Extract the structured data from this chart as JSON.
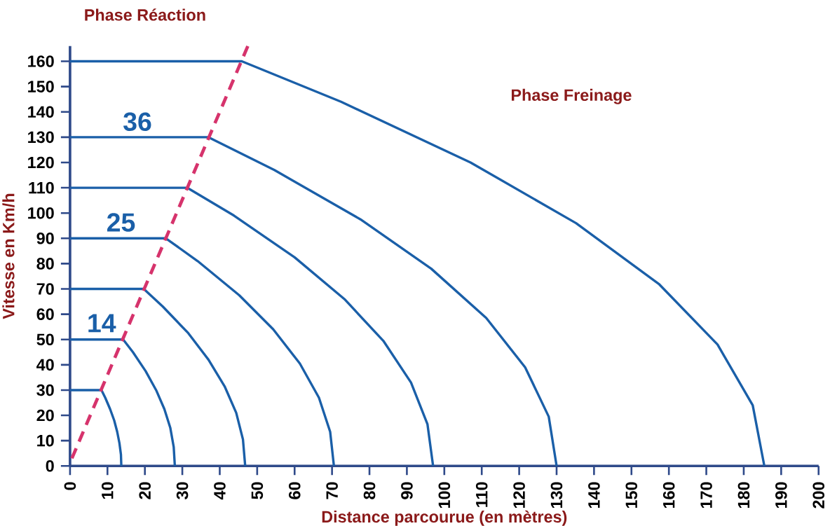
{
  "chart_data": {
    "type": "line",
    "xlabel": "Distance parcourue (en mètres)",
    "ylabel": "Vitesse en Km/h",
    "xlim": [
      0,
      200
    ],
    "ylim": [
      0,
      166
    ],
    "xticks": [
      0,
      10,
      20,
      30,
      40,
      50,
      60,
      70,
      80,
      90,
      100,
      110,
      120,
      130,
      140,
      150,
      160,
      170,
      180,
      190,
      200
    ],
    "yticks": [
      0,
      10,
      20,
      30,
      40,
      50,
      60,
      70,
      80,
      90,
      100,
      110,
      120,
      130,
      140,
      150,
      160
    ],
    "grid": false,
    "marker": "none",
    "annotations": [
      "Phase Réaction",
      "Phase Freinage",
      "14",
      "25",
      "36"
    ],
    "series": [
      {
        "color": "#1a5fa8",
        "line_style": "solid",
        "x": [
          0,
          8.4,
          9.4,
          10.7,
          11.8,
          12.6,
          13.2,
          13.6,
          13.7
        ],
        "values": [
          30,
          30,
          27,
          22.5,
          18,
          13.5,
          9,
          4.5,
          0
        ]
      },
      {
        "color": "#1a5fa8",
        "line_style": "solid",
        "x": [
          0,
          14.2,
          16.8,
          20.2,
          23.0,
          25.2,
          26.8,
          27.7,
          28
        ],
        "values": [
          50,
          50,
          45,
          37.5,
          30,
          22.5,
          15,
          7.5,
          0
        ]
      },
      {
        "color": "#1a5fa8",
        "line_style": "solid",
        "x": [
          0,
          19.7,
          24.8,
          31.6,
          37.0,
          41.3,
          44.4,
          46.2,
          46.8
        ],
        "values": [
          70,
          70,
          63,
          52.5,
          42,
          31.5,
          21,
          10.5,
          0
        ]
      },
      {
        "color": "#1a5fa8",
        "line_style": "solid",
        "x": [
          0,
          25.6,
          34.1,
          45.2,
          54.3,
          61.4,
          66.5,
          69.5,
          70.5
        ],
        "values": [
          90,
          90,
          81,
          67.5,
          54,
          40.5,
          27,
          13.5,
          0
        ]
      },
      {
        "color": "#1a5fa8",
        "line_style": "solid",
        "x": [
          0,
          31.3,
          43.8,
          60.0,
          73.3,
          83.7,
          91.1,
          95.5,
          97
        ],
        "values": [
          110,
          110,
          99,
          82.5,
          66,
          49.5,
          33,
          16.5,
          0
        ]
      },
      {
        "color": "#1a5fa8",
        "line_style": "solid",
        "x": [
          0,
          36.9,
          54.6,
          77.6,
          96.5,
          111.2,
          121.6,
          127.9,
          130
        ],
        "values": [
          130,
          130,
          117,
          97.5,
          78,
          58.5,
          39,
          19.5,
          0
        ]
      },
      {
        "color": "#1a5fa8",
        "line_style": "solid",
        "x": [
          0,
          45.9,
          72.4,
          107.0,
          135.2,
          157.3,
          173.0,
          182.4,
          185.5
        ],
        "values": [
          160,
          160,
          144,
          120,
          96,
          72,
          48,
          24,
          0
        ]
      },
      {
        "color": "#d6336c",
        "line_style": "dashed",
        "x": [
          0.5,
          47.5
        ],
        "values": [
          3,
          166
        ]
      }
    ]
  }
}
